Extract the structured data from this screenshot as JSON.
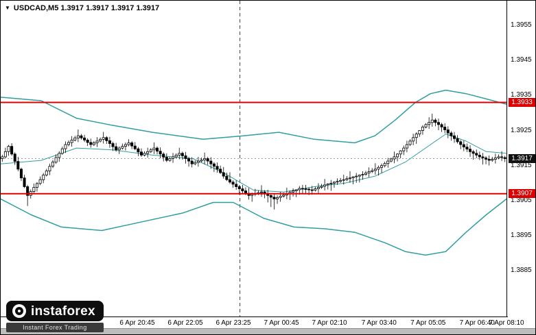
{
  "header": {
    "symbol_line": "USDCAD,M5  1.3917 1.3917 1.3917 1.3917",
    "dropdown_icon": "▼"
  },
  "watermark": {
    "brand": "instaforex",
    "tagline": "Instant Forex Trading",
    "icon": "target-icon"
  },
  "colors": {
    "background": "#ffffff",
    "band_teal": "#2f9e9e",
    "level_red": "#dd0000",
    "current_tag_bg": "#111111",
    "candle_up": "#ffffff",
    "candle_down": "#000000"
  },
  "chart_data": {
    "type": "candlestick",
    "symbol": "USDCAD",
    "timeframe": "M5",
    "title": "USDCAD,M5",
    "ohlc_display": {
      "open": "1.3917",
      "high": "1.3917",
      "low": "1.3917",
      "close": "1.3917"
    },
    "grid": false,
    "y_axis": {
      "ylim": [
        1.3872,
        1.3962
      ],
      "ticks": [
        1.3955,
        1.3945,
        1.3935,
        1.3925,
        1.3915,
        1.3905,
        1.3895,
        1.3885
      ]
    },
    "x_axis": {
      "labels": [
        {
          "text": "6 Apr 20:45",
          "pos": 0.27
        },
        {
          "text": "6 Apr 22:05",
          "pos": 0.365
        },
        {
          "text": "6 Apr 23:25",
          "pos": 0.46
        },
        {
          "text": "7 Apr 00:45",
          "pos": 0.555
        },
        {
          "text": "7 Apr 02:10",
          "pos": 0.65
        },
        {
          "text": "7 Apr 03:40",
          "pos": 0.748
        },
        {
          "text": "7 Apr 05:05",
          "pos": 0.845
        },
        {
          "text": "7 Apr 06:40",
          "pos": 0.942
        },
        {
          "text": "7 Apr 08:10",
          "pos": 1.0
        }
      ]
    },
    "horizontal_lines": [
      {
        "value": 1.3933,
        "label": "1.3933",
        "color": "#dd0000",
        "role": "resistance"
      },
      {
        "value": 1.3907,
        "label": "1.3907",
        "color": "#dd0000",
        "role": "support"
      }
    ],
    "current_price": {
      "value": 1.3917,
      "label": "1.3917"
    },
    "separator": {
      "pos": 0.473,
      "style": "dashed"
    },
    "bollinger_bands": {
      "color": "#2f9e9e",
      "upper": [
        [
          0,
          1.39345
        ],
        [
          0.08,
          1.39335
        ],
        [
          0.15,
          1.39285
        ],
        [
          0.22,
          1.39265
        ],
        [
          0.3,
          1.39245
        ],
        [
          0.4,
          1.39225
        ],
        [
          0.48,
          1.39235
        ],
        [
          0.55,
          1.39245
        ],
        [
          0.62,
          1.39225
        ],
        [
          0.7,
          1.39215
        ],
        [
          0.74,
          1.39235
        ],
        [
          0.78,
          1.3928
        ],
        [
          0.82,
          1.3933
        ],
        [
          0.85,
          1.39355
        ],
        [
          0.88,
          1.39365
        ],
        [
          0.92,
          1.39355
        ],
        [
          0.96,
          1.3934
        ],
        [
          1,
          1.39325
        ]
      ],
      "middle": [
        [
          0,
          1.39155
        ],
        [
          0.08,
          1.39165
        ],
        [
          0.15,
          1.392
        ],
        [
          0.22,
          1.39195
        ],
        [
          0.3,
          1.3918
        ],
        [
          0.38,
          1.3917
        ],
        [
          0.44,
          1.3913
        ],
        [
          0.5,
          1.3908
        ],
        [
          0.56,
          1.39075
        ],
        [
          0.62,
          1.3909
        ],
        [
          0.68,
          1.391
        ],
        [
          0.74,
          1.3912
        ],
        [
          0.8,
          1.3916
        ],
        [
          0.85,
          1.3921
        ],
        [
          0.88,
          1.3924
        ],
        [
          0.92,
          1.3922
        ],
        [
          0.96,
          1.3919
        ],
        [
          1,
          1.39185
        ]
      ],
      "lower": [
        [
          0,
          1.39055
        ],
        [
          0.06,
          1.3901
        ],
        [
          0.12,
          1.38975
        ],
        [
          0.2,
          1.38965
        ],
        [
          0.28,
          1.3899
        ],
        [
          0.36,
          1.39015
        ],
        [
          0.42,
          1.39045
        ],
        [
          0.46,
          1.39045
        ],
        [
          0.52,
          1.39
        ],
        [
          0.58,
          1.38975
        ],
        [
          0.64,
          1.3897
        ],
        [
          0.7,
          1.3896
        ],
        [
          0.76,
          1.3893
        ],
        [
          0.8,
          1.38905
        ],
        [
          0.84,
          1.38895
        ],
        [
          0.88,
          1.38905
        ],
        [
          0.92,
          1.3896
        ],
        [
          0.96,
          1.3901
        ],
        [
          1,
          1.39055
        ]
      ]
    },
    "candles": {
      "encoding": "pips above base, price = base + value * pip",
      "base": 1.39,
      "pip": 0.0001,
      "ohlc": [
        [
          17.0,
          18.1,
          16.1,
          17.5
        ],
        [
          17.5,
          20.1,
          17.1,
          19.0
        ],
        [
          19.0,
          20.9,
          17.8,
          20.5
        ],
        [
          20.5,
          21.4,
          17.8,
          18.3
        ],
        [
          18.3,
          18.8,
          15.2,
          16.2
        ],
        [
          16.2,
          17.5,
          13.4,
          14.0
        ],
        [
          14.0,
          14.4,
          10.6,
          11.5
        ],
        [
          11.5,
          12.4,
          8.6,
          9.0
        ],
        [
          9.0,
          9.5,
          3.5,
          6.5
        ],
        [
          6.5,
          8.2,
          5.6,
          7.6
        ],
        [
          7.6,
          9.9,
          7.2,
          8.8
        ],
        [
          8.8,
          10.3,
          7.6,
          9.9
        ],
        [
          9.9,
          11.9,
          9.4,
          11.0
        ],
        [
          11.0,
          12.9,
          10.0,
          12.3
        ],
        [
          12.3,
          14.1,
          11.9,
          13.5
        ],
        [
          13.5,
          15.6,
          12.3,
          14.8
        ],
        [
          14.8,
          16.6,
          14.3,
          16.0
        ],
        [
          16.0,
          18.2,
          15.5,
          17.3
        ],
        [
          17.3,
          19.1,
          16.1,
          18.5
        ],
        [
          18.5,
          20.4,
          18.1,
          19.8
        ],
        [
          19.8,
          21.9,
          18.6,
          21.0
        ],
        [
          21.0,
          22.2,
          20.5,
          21.6
        ],
        [
          21.6,
          23.4,
          20.4,
          22.3
        ],
        [
          22.3,
          23.5,
          21.9,
          22.9
        ],
        [
          22.9,
          25.3,
          21.7,
          23.5
        ],
        [
          23.5,
          24.0,
          22.4,
          22.9
        ],
        [
          22.9,
          23.8,
          21.7,
          22.3
        ],
        [
          22.3,
          22.8,
          20.6,
          21.6
        ],
        [
          21.6,
          22.7,
          20.1,
          21.0
        ],
        [
          21.0,
          22.0,
          20.6,
          21.5
        ],
        [
          21.5,
          23.1,
          20.3,
          22.0
        ],
        [
          22.0,
          23.0,
          21.6,
          22.5
        ],
        [
          22.5,
          24.6,
          21.3,
          23.0
        ],
        [
          23.0,
          23.4,
          21.2,
          22.1
        ],
        [
          22.1,
          23.2,
          20.1,
          21.3
        ],
        [
          21.3,
          21.8,
          19.2,
          20.4
        ],
        [
          20.4,
          21.5,
          19.0,
          19.5
        ],
        [
          19.5,
          20.5,
          18.3,
          20.0
        ],
        [
          20.0,
          21.3,
          19.6,
          20.5
        ],
        [
          20.5,
          21.6,
          19.3,
          21.0
        ],
        [
          21.0,
          22.5,
          20.5,
          21.5
        ],
        [
          21.5,
          22.0,
          19.7,
          20.6
        ],
        [
          20.6,
          21.7,
          19.4,
          19.8
        ],
        [
          19.8,
          20.3,
          17.7,
          18.9
        ],
        [
          18.9,
          19.9,
          17.5,
          18.0
        ],
        [
          18.0,
          19.1,
          17.6,
          18.5
        ],
        [
          18.5,
          20.1,
          17.3,
          19.0
        ],
        [
          19.0,
          20.0,
          18.6,
          19.5
        ],
        [
          19.5,
          21.6,
          18.3,
          20.0
        ],
        [
          20.0,
          20.5,
          18.2,
          19.1
        ],
        [
          19.1,
          20.2,
          17.1,
          18.3
        ],
        [
          18.3,
          18.8,
          16.2,
          17.4
        ],
        [
          17.4,
          18.5,
          16.0,
          16.5
        ],
        [
          16.5,
          17.5,
          16.1,
          17.0
        ],
        [
          17.0,
          18.6,
          15.8,
          17.5
        ],
        [
          17.5,
          18.5,
          17.1,
          18.0
        ],
        [
          18.0,
          20.1,
          16.8,
          18.5
        ],
        [
          18.5,
          19.0,
          16.7,
          17.8
        ],
        [
          17.8,
          18.9,
          15.6,
          17.0
        ],
        [
          17.0,
          17.5,
          14.7,
          16.3
        ],
        [
          16.3,
          17.4,
          14.5,
          15.5
        ],
        [
          15.5,
          16.5,
          15.1,
          15.9
        ],
        [
          15.9,
          17.5,
          14.7,
          16.3
        ],
        [
          16.3,
          17.3,
          15.9,
          16.6
        ],
        [
          16.6,
          18.7,
          15.4,
          17.0
        ],
        [
          17.0,
          17.5,
          15.2,
          16.3
        ],
        [
          16.3,
          17.4,
          14.1,
          15.5
        ],
        [
          15.5,
          16.0,
          13.2,
          14.8
        ],
        [
          14.8,
          15.9,
          13.0,
          14.0
        ],
        [
          14.0,
          15.0,
          12.6,
          13.0
        ],
        [
          13.0,
          14.6,
          11.3,
          12.0
        ],
        [
          12.0,
          13.0,
          10.6,
          11.0
        ],
        [
          11.0,
          13.1,
          9.8,
          10.3
        ],
        [
          10.3,
          10.8,
          8.7,
          9.7
        ],
        [
          9.7,
          10.8,
          8.1,
          9.0
        ],
        [
          9.0,
          9.5,
          6.7,
          8.4
        ],
        [
          8.4,
          9.5,
          7.0,
          7.8
        ],
        [
          7.8,
          8.8,
          6.6,
          7.1
        ],
        [
          7.1,
          8.6,
          5.3,
          6.5
        ],
        [
          6.5,
          7.3,
          4.7,
          6.8
        ],
        [
          6.8,
          8.4,
          6.3,
          7.0
        ],
        [
          7.0,
          8.0,
          6.6,
          7.3
        ],
        [
          7.3,
          9.4,
          6.1,
          7.5
        ],
        [
          7.5,
          8.0,
          5.7,
          7.0
        ],
        [
          7.0,
          8.1,
          4.5,
          6.5
        ],
        [
          6.5,
          7.0,
          3.2,
          6.0
        ],
        [
          6.0,
          7.1,
          2.5,
          5.5
        ],
        [
          5.5,
          6.5,
          4.1,
          5.9
        ],
        [
          5.9,
          7.5,
          4.7,
          6.3
        ],
        [
          6.3,
          7.3,
          5.9,
          6.6
        ],
        [
          6.6,
          8.7,
          5.4,
          7.0
        ],
        [
          7.0,
          7.9,
          5.2,
          7.4
        ],
        [
          7.4,
          8.5,
          6.2,
          7.8
        ],
        [
          7.8,
          8.3,
          6.0,
          8.1
        ],
        [
          8.1,
          9.2,
          6.7,
          8.5
        ],
        [
          8.5,
          9.5,
          7.0,
          8.4
        ],
        [
          8.4,
          9.5,
          7.1,
          8.3
        ],
        [
          8.3,
          8.8,
          6.6,
          8.1
        ],
        [
          8.1,
          9.2,
          6.7,
          8.0
        ],
        [
          8.0,
          9.0,
          7.6,
          8.4
        ],
        [
          8.4,
          10.0,
          7.2,
          8.8
        ],
        [
          8.8,
          9.8,
          8.4,
          9.1
        ],
        [
          9.1,
          11.2,
          7.9,
          9.5
        ],
        [
          9.5,
          10.0,
          8.2,
          9.8
        ],
        [
          9.8,
          10.9,
          7.8,
          10.0
        ],
        [
          10.0,
          10.5,
          8.7,
          10.3
        ],
        [
          10.3,
          11.4,
          9.5,
          10.5
        ],
        [
          10.5,
          11.5,
          10.1,
          10.8
        ],
        [
          10.8,
          12.4,
          9.6,
          11.0
        ],
        [
          11.0,
          12.0,
          10.6,
          11.3
        ],
        [
          11.3,
          13.4,
          10.1,
          11.5
        ],
        [
          11.5,
          12.0,
          9.7,
          11.8
        ],
        [
          11.8,
          12.9,
          10.1,
          12.0
        ],
        [
          12.0,
          12.5,
          10.2,
          12.3
        ],
        [
          12.3,
          13.4,
          11.0,
          12.5
        ],
        [
          12.5,
          13.5,
          12.1,
          12.9
        ],
        [
          12.9,
          14.5,
          11.7,
          13.3
        ],
        [
          13.3,
          14.3,
          12.9,
          13.6
        ],
        [
          13.6,
          15.7,
          12.4,
          14.0
        ],
        [
          14.0,
          15.0,
          12.2,
          14.5
        ],
        [
          14.5,
          15.6,
          12.9,
          15.0
        ],
        [
          15.0,
          16.1,
          14.5,
          15.6
        ],
        [
          15.6,
          17.2,
          14.4,
          16.3
        ],
        [
          16.3,
          17.3,
          15.9,
          16.9
        ],
        [
          16.9,
          19.0,
          15.7,
          17.5
        ],
        [
          17.5,
          18.5,
          16.2,
          18.3
        ],
        [
          18.3,
          19.4,
          17.1,
          19.2
        ],
        [
          19.2,
          20.7,
          18.0,
          20.0
        ],
        [
          20.0,
          22.1,
          18.8,
          21.0
        ],
        [
          21.0,
          22.5,
          20.6,
          22.0
        ],
        [
          22.0,
          24.1,
          20.8,
          23.0
        ],
        [
          23.0,
          24.5,
          21.2,
          24.0
        ],
        [
          24.0,
          25.1,
          23.2,
          25.0
        ],
        [
          25.0,
          26.5,
          23.8,
          26.0
        ],
        [
          26.0,
          27.1,
          25.6,
          26.7
        ],
        [
          26.7,
          28.8,
          25.5,
          27.3
        ],
        [
          27.3,
          29.8,
          26.1,
          28.0
        ],
        [
          28.0,
          28.5,
          26.2,
          27.3
        ],
        [
          27.3,
          28.4,
          25.1,
          26.7
        ],
        [
          26.7,
          27.2,
          24.6,
          26.0
        ],
        [
          26.0,
          27.1,
          24.2,
          25.2
        ],
        [
          25.2,
          26.2,
          22.8,
          24.3
        ],
        [
          24.3,
          24.8,
          22.1,
          23.5
        ],
        [
          23.5,
          24.6,
          21.5,
          22.7
        ],
        [
          22.7,
          23.7,
          21.3,
          21.8
        ],
        [
          21.8,
          22.3,
          19.7,
          21.0
        ],
        [
          21.0,
          22.1,
          19.1,
          20.3
        ],
        [
          20.3,
          21.3,
          18.9,
          19.7
        ],
        [
          19.7,
          20.8,
          17.5,
          19.0
        ],
        [
          19.0,
          19.5,
          16.7,
          18.5
        ],
        [
          18.5,
          19.6,
          17.1,
          18.0
        ],
        [
          18.0,
          19.0,
          16.6,
          17.5
        ],
        [
          17.5,
          18.6,
          15.3,
          17.2
        ],
        [
          17.2,
          17.7,
          15.4,
          16.8
        ],
        [
          16.8,
          17.9,
          15.0,
          16.5
        ],
        [
          16.5,
          17.5,
          16.1,
          16.8
        ],
        [
          16.8,
          18.4,
          15.6,
          17.2
        ],
        [
          17.2,
          18.2,
          16.8,
          17.5
        ],
        [
          17.5,
          19.1,
          16.3,
          17.3
        ],
        [
          17.3,
          17.8,
          16.0,
          17.0
        ]
      ]
    }
  }
}
